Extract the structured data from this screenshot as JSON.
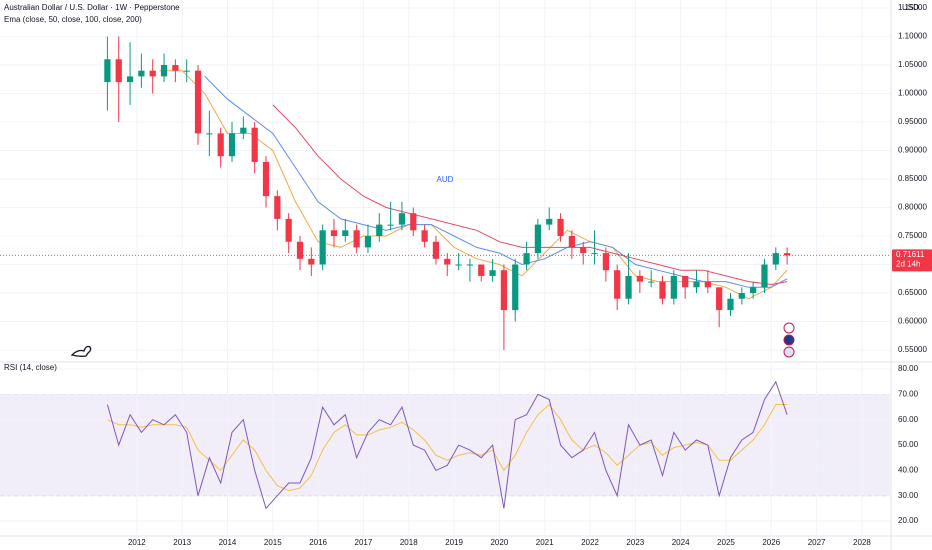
{
  "chart_data": [
    {
      "type": "candlestick",
      "title": "Australian Dollar / U.S. Dollar · 1W · Pepperstone",
      "subtitle": "Ema (close, 50, close, 100, close, 200)",
      "axis_label": "USD",
      "annotation": "AUD",
      "last_price": 0.71611,
      "countdown": "2d 14h",
      "up_color": "#089981",
      "down_color": "#f23645",
      "x": [
        2011.35,
        2011.6,
        2011.85,
        2012.1,
        2012.35,
        2012.6,
        2012.85,
        2013.1,
        2013.35,
        2013.6,
        2013.85,
        2014.1,
        2014.35,
        2014.6,
        2014.85,
        2015.1,
        2015.35,
        2015.6,
        2015.85,
        2016.1,
        2016.35,
        2016.6,
        2016.85,
        2017.1,
        2017.35,
        2017.6,
        2017.85,
        2018.1,
        2018.35,
        2018.6,
        2018.85,
        2019.1,
        2019.35,
        2019.6,
        2019.85,
        2020.1,
        2020.35,
        2020.6,
        2020.85,
        2021.1,
        2021.35,
        2021.6,
        2021.85,
        2022.1,
        2022.35,
        2022.6,
        2022.85,
        2023.1,
        2023.35,
        2023.6,
        2023.85,
        2024.1,
        2024.35,
        2024.6,
        2024.85,
        2025.1,
        2025.35,
        2025.6,
        2025.85,
        2026.1,
        2026.35
      ],
      "open": [
        1.02,
        1.06,
        1.02,
        1.03,
        1.04,
        1.03,
        1.05,
        1.04,
        1.04,
        0.93,
        0.93,
        0.89,
        0.93,
        0.94,
        0.88,
        0.82,
        0.78,
        0.74,
        0.71,
        0.7,
        0.76,
        0.75,
        0.76,
        0.73,
        0.75,
        0.77,
        0.77,
        0.79,
        0.76,
        0.74,
        0.71,
        0.7,
        0.7,
        0.7,
        0.68,
        0.69,
        0.62,
        0.7,
        0.72,
        0.77,
        0.78,
        0.75,
        0.73,
        0.72,
        0.72,
        0.69,
        0.64,
        0.68,
        0.67,
        0.67,
        0.64,
        0.68,
        0.66,
        0.67,
        0.66,
        0.62,
        0.64,
        0.65,
        0.66,
        0.7,
        0.72
      ],
      "high": [
        1.1,
        1.1,
        1.09,
        1.07,
        1.06,
        1.07,
        1.06,
        1.06,
        1.05,
        0.97,
        0.94,
        0.95,
        0.96,
        0.95,
        0.89,
        0.83,
        0.79,
        0.75,
        0.73,
        0.77,
        0.78,
        0.78,
        0.77,
        0.77,
        0.79,
        0.81,
        0.81,
        0.8,
        0.77,
        0.75,
        0.72,
        0.72,
        0.71,
        0.7,
        0.71,
        0.7,
        0.71,
        0.74,
        0.78,
        0.8,
        0.79,
        0.76,
        0.74,
        0.76,
        0.73,
        0.7,
        0.72,
        0.69,
        0.69,
        0.68,
        0.69,
        0.68,
        0.69,
        0.69,
        0.66,
        0.65,
        0.66,
        0.67,
        0.71,
        0.73,
        0.73
      ],
      "low": [
        0.97,
        0.95,
        0.98,
        1.01,
        1.0,
        1.02,
        1.02,
        1.02,
        0.91,
        0.89,
        0.87,
        0.88,
        0.92,
        0.86,
        0.8,
        0.76,
        0.72,
        0.69,
        0.68,
        0.69,
        0.73,
        0.74,
        0.72,
        0.72,
        0.74,
        0.76,
        0.76,
        0.75,
        0.73,
        0.7,
        0.68,
        0.69,
        0.67,
        0.67,
        0.67,
        0.55,
        0.6,
        0.69,
        0.71,
        0.76,
        0.74,
        0.71,
        0.7,
        0.7,
        0.67,
        0.62,
        0.63,
        0.65,
        0.66,
        0.63,
        0.63,
        0.64,
        0.65,
        0.65,
        0.59,
        0.61,
        0.63,
        0.64,
        0.65,
        0.69,
        0.7
      ],
      "close": [
        1.06,
        1.02,
        1.03,
        1.04,
        1.03,
        1.05,
        1.04,
        1.04,
        0.93,
        0.93,
        0.89,
        0.93,
        0.94,
        0.88,
        0.82,
        0.78,
        0.74,
        0.71,
        0.7,
        0.76,
        0.75,
        0.76,
        0.73,
        0.75,
        0.77,
        0.77,
        0.79,
        0.76,
        0.74,
        0.71,
        0.7,
        0.7,
        0.7,
        0.68,
        0.69,
        0.62,
        0.7,
        0.72,
        0.77,
        0.78,
        0.75,
        0.73,
        0.72,
        0.72,
        0.69,
        0.64,
        0.68,
        0.67,
        0.67,
        0.64,
        0.68,
        0.66,
        0.67,
        0.66,
        0.62,
        0.64,
        0.65,
        0.66,
        0.7,
        0.72,
        0.716
      ],
      "series": [
        {
          "color": "#f5a742",
          "x": [
            2012.5,
            2013,
            2013.5,
            2014,
            2014.5,
            2015,
            2015.5,
            2016,
            2016.5,
            2017,
            2017.5,
            2018,
            2018.5,
            2019,
            2019.5,
            2020,
            2020.5,
            2021,
            2021.5,
            2022,
            2022.5,
            2023,
            2023.5,
            2024,
            2024.5,
            2025,
            2025.5,
            2026,
            2026.35
          ],
          "values": [
            1.04,
            1.04,
            1.0,
            0.93,
            0.93,
            0.9,
            0.81,
            0.74,
            0.73,
            0.75,
            0.75,
            0.77,
            0.77,
            0.73,
            0.71,
            0.7,
            0.68,
            0.72,
            0.76,
            0.74,
            0.73,
            0.68,
            0.67,
            0.67,
            0.67,
            0.66,
            0.64,
            0.66,
            0.69
          ]
        },
        {
          "color": "#5b8def",
          "x": [
            2012.5,
            2013,
            2013.5,
            2014,
            2014.5,
            2015,
            2015.5,
            2016,
            2016.5,
            2017,
            2017.5,
            2018,
            2018.5,
            2019,
            2019.5,
            2020,
            2020.5,
            2021,
            2021.5,
            2022,
            2022.5,
            2023,
            2023.5,
            2024,
            2024.5,
            2025,
            2025.5,
            2026,
            2026.35
          ],
          "values": [
            null,
            null,
            1.03,
            0.99,
            0.96,
            0.93,
            0.87,
            0.81,
            0.78,
            0.77,
            0.76,
            0.77,
            0.77,
            0.75,
            0.73,
            0.72,
            0.7,
            0.71,
            0.73,
            0.74,
            0.73,
            0.7,
            0.69,
            0.68,
            0.67,
            0.67,
            0.66,
            0.66,
            0.675
          ]
        },
        {
          "color": "#e84a5f",
          "x": [
            2012.5,
            2013,
            2013.5,
            2014,
            2014.5,
            2015,
            2015.5,
            2016,
            2016.5,
            2017,
            2017.5,
            2018,
            2018.5,
            2019,
            2019.5,
            2020,
            2020.5,
            2021,
            2021.5,
            2022,
            2022.5,
            2023,
            2023.5,
            2024,
            2024.5,
            2025,
            2025.5,
            2026,
            2026.35
          ],
          "values": [
            null,
            null,
            null,
            null,
            null,
            0.98,
            0.94,
            0.89,
            0.85,
            0.82,
            0.8,
            0.79,
            0.78,
            0.77,
            0.76,
            0.74,
            0.73,
            0.73,
            0.73,
            0.73,
            0.72,
            0.71,
            0.7,
            0.69,
            0.69,
            0.68,
            0.67,
            0.665,
            0.67
          ]
        }
      ],
      "xlim": [
        2008.98,
        2028.62
      ],
      "ylim": [
        0.5325,
        1.164
      ],
      "yticks": [
        {
          "value": 1.15,
          "label": "1.15000"
        },
        {
          "value": 1.1,
          "label": "1.10000"
        },
        {
          "value": 1.05,
          "label": "1.05000"
        },
        {
          "value": 1.0,
          "label": "1.00000"
        },
        {
          "value": 0.95,
          "label": "0.95000"
        },
        {
          "value": 0.9,
          "label": "0.90000"
        },
        {
          "value": 0.85,
          "label": "0.85000"
        },
        {
          "value": 0.8,
          "label": "0.80000"
        },
        {
          "value": 0.75,
          "label": "0.75000"
        },
        {
          "value": 0.7,
          "label": "0.70000"
        },
        {
          "value": 0.65,
          "label": "0.65000"
        },
        {
          "value": 0.6,
          "label": "0.60000"
        },
        {
          "value": 0.55,
          "label": "0.55000"
        }
      ],
      "grid": true
    },
    {
      "type": "line",
      "title": "RSI (14, close)",
      "x": [
        2011.35,
        2011.6,
        2011.85,
        2012.1,
        2012.35,
        2012.6,
        2012.85,
        2013.1,
        2013.35,
        2013.6,
        2013.85,
        2014.1,
        2014.35,
        2014.6,
        2014.85,
        2015.1,
        2015.35,
        2015.6,
        2015.85,
        2016.1,
        2016.35,
        2016.6,
        2016.85,
        2017.1,
        2017.35,
        2017.6,
        2017.85,
        2018.1,
        2018.35,
        2018.6,
        2018.85,
        2019.1,
        2019.35,
        2019.6,
        2019.85,
        2020.1,
        2020.35,
        2020.6,
        2020.85,
        2021.1,
        2021.35,
        2021.6,
        2021.85,
        2022.1,
        2022.35,
        2022.6,
        2022.85,
        2023.1,
        2023.35,
        2023.6,
        2023.85,
        2024.1,
        2024.35,
        2024.6,
        2024.85,
        2025.1,
        2025.35,
        2025.6,
        2025.85,
        2026.1,
        2026.35
      ],
      "series": [
        {
          "color": "#7e57c2",
          "values": [
            66,
            50,
            62,
            55,
            60,
            58,
            62,
            55,
            30,
            45,
            35,
            55,
            60,
            40,
            25,
            30,
            35,
            35,
            45,
            65,
            58,
            62,
            45,
            55,
            60,
            58,
            65,
            50,
            48,
            40,
            42,
            50,
            48,
            45,
            50,
            25,
            60,
            62,
            70,
            68,
            50,
            45,
            48,
            55,
            40,
            30,
            58,
            50,
            52,
            38,
            55,
            48,
            52,
            50,
            30,
            45,
            52,
            55,
            68,
            75,
            62
          ]
        },
        {
          "color": "#f5c04a",
          "values": [
            60,
            58,
            58,
            57,
            58,
            58,
            58,
            57,
            48,
            44,
            40,
            46,
            52,
            48,
            40,
            34,
            32,
            33,
            38,
            48,
            55,
            58,
            54,
            54,
            56,
            57,
            59,
            56,
            52,
            46,
            44,
            46,
            47,
            46,
            48,
            40,
            46,
            55,
            62,
            66,
            60,
            52,
            48,
            50,
            47,
            42,
            46,
            50,
            51,
            46,
            49,
            50,
            51,
            50,
            44,
            44,
            48,
            52,
            58,
            66,
            66
          ]
        }
      ],
      "band": [
        30,
        70
      ],
      "midline": 50,
      "band_color": "#7e57c2",
      "xlim": [
        2008.98,
        2028.62
      ],
      "ylim": [
        13.3,
        82.8
      ],
      "yticks": [
        {
          "value": 80,
          "label": "80.00"
        },
        {
          "value": 70,
          "label": "70.00"
        },
        {
          "value": 60,
          "label": "60.00"
        },
        {
          "value": 50,
          "label": "50.00"
        },
        {
          "value": 40,
          "label": "40.00"
        },
        {
          "value": 30,
          "label": "30.00"
        },
        {
          "value": 20,
          "label": "20.00"
        }
      ],
      "xticks": [
        2012,
        2013,
        2014,
        2015,
        2016,
        2017,
        2018,
        2019,
        2020,
        2021,
        2022,
        2023,
        2024,
        2025,
        2026,
        2027,
        2028
      ],
      "grid": true
    }
  ]
}
